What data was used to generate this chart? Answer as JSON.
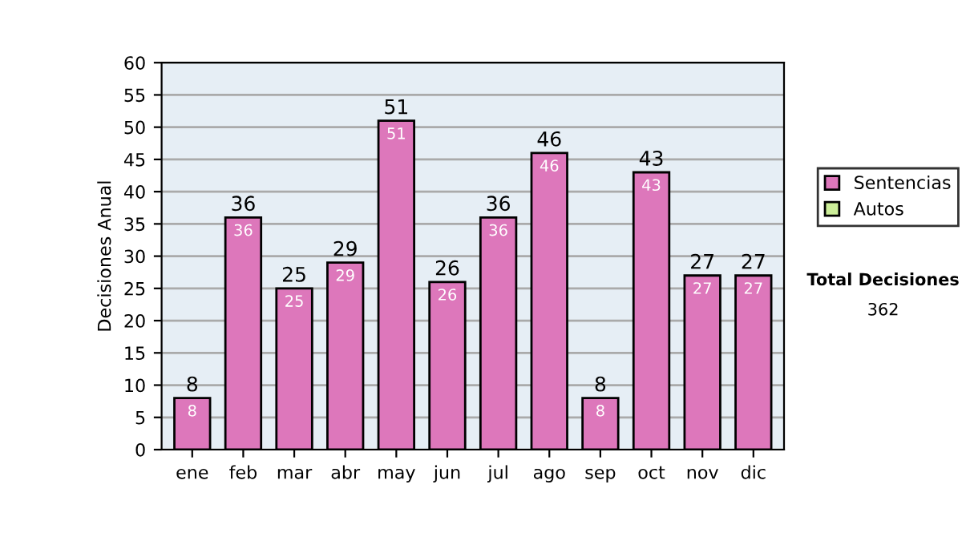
{
  "chart_data": {
    "type": "bar",
    "ylabel": "Decisiones Anual",
    "categories": [
      "ene",
      "feb",
      "mar",
      "abr",
      "may",
      "jun",
      "jul",
      "ago",
      "sep",
      "oct",
      "nov",
      "dic"
    ],
    "series": [
      {
        "name": "Sentencias",
        "color": "#dd77bb",
        "values": [
          8,
          36,
          25,
          29,
          51,
          26,
          36,
          46,
          8,
          43,
          27,
          27
        ],
        "value_labels": [
          "8",
          "36",
          "25",
          "29",
          "51",
          "26",
          "36",
          "46",
          "8",
          "43",
          "27",
          "27"
        ]
      },
      {
        "name": "Autos",
        "color": "#ccee99",
        "values": [
          0,
          0,
          0,
          0,
          0,
          0,
          0,
          0,
          0,
          0,
          0,
          0
        ]
      }
    ],
    "stacked": true,
    "totals": [
      "8",
      "36",
      "25",
      "29",
      "51",
      "26",
      "36",
      "46",
      "8",
      "43",
      "27",
      "27"
    ],
    "ylim": [
      0,
      60
    ],
    "yticks": [
      0,
      5,
      10,
      15,
      20,
      25,
      30,
      35,
      40,
      45,
      50,
      55,
      60
    ],
    "grid": "y",
    "legend": "right",
    "annotations": [
      "Total Decisiones",
      "362"
    ]
  }
}
